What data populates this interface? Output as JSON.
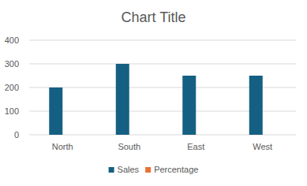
{
  "chart_data": {
    "type": "bar",
    "title": "Chart Title",
    "categories": [
      "North",
      "South",
      "East",
      "West"
    ],
    "series": [
      {
        "name": "Sales",
        "color": "#156082",
        "values": [
          200,
          300,
          250,
          250
        ]
      },
      {
        "name": "Percentage",
        "color": "#e97132",
        "values": [
          0,
          0,
          0,
          0
        ]
      }
    ],
    "ylim": [
      0,
      400
    ],
    "yticks": [
      0,
      100,
      200,
      300,
      400
    ],
    "grid": true,
    "legend": "bottom"
  }
}
